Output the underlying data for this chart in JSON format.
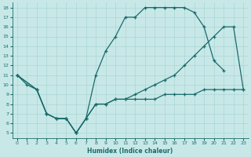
{
  "xlabel": "Humidex (Indice chaleur)",
  "bg_color": "#c8e8e8",
  "line_color": "#1a6b6b",
  "grid_color": "#aad4d4",
  "xlim": [
    -0.5,
    23.5
  ],
  "ylim": [
    4.5,
    18.5
  ],
  "yticks": [
    5,
    6,
    7,
    8,
    9,
    10,
    11,
    12,
    13,
    14,
    15,
    16,
    17,
    18
  ],
  "xticks": [
    0,
    1,
    2,
    3,
    4,
    5,
    6,
    7,
    8,
    9,
    10,
    11,
    12,
    13,
    14,
    15,
    16,
    17,
    18,
    19,
    20,
    21,
    22,
    23
  ],
  "line1_x": [
    0,
    1,
    2,
    3,
    4,
    5,
    6,
    7,
    8,
    9,
    10,
    11,
    12,
    13,
    14,
    15,
    16,
    17,
    18,
    19,
    20,
    21
  ],
  "line1_y": [
    11,
    10,
    9.5,
    7,
    6.5,
    6.5,
    5.0,
    6.5,
    11,
    13.5,
    15,
    17,
    17,
    18,
    18,
    18,
    18,
    18,
    17.5,
    16,
    12.5,
    11.5
  ],
  "line2_x": [
    0,
    2,
    3,
    4,
    5,
    6,
    7,
    8,
    9,
    10,
    11,
    12,
    13,
    14,
    15,
    16,
    17,
    18,
    19,
    20,
    21,
    22,
    23
  ],
  "line2_y": [
    11,
    9.5,
    7,
    6.5,
    6.5,
    5.0,
    6.5,
    8.0,
    8.0,
    8.5,
    8.5,
    9,
    9.5,
    10,
    10.5,
    11,
    12,
    13,
    14,
    15,
    16,
    16,
    9.5
  ],
  "line3_x": [
    0,
    2,
    3,
    4,
    5,
    6,
    7,
    8,
    9,
    10,
    11,
    12,
    13,
    14,
    15,
    16,
    17,
    18,
    19,
    20,
    21,
    22,
    23
  ],
  "line3_y": [
    11,
    9.5,
    7,
    6.5,
    6.5,
    5.0,
    6.5,
    8.0,
    8.0,
    8.5,
    8.5,
    8.5,
    8.5,
    8.5,
    9,
    9,
    9,
    9,
    9.5,
    9.5,
    9.5,
    9.5,
    9.5
  ]
}
